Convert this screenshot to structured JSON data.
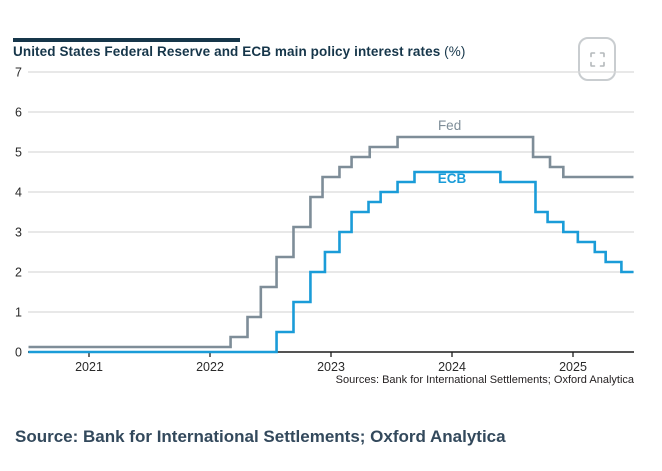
{
  "header": {
    "title_main": "United States Federal Reserve and ECB main policy interest rates",
    "title_unit": "(%)"
  },
  "controls": {
    "expand_button": "fullscreen"
  },
  "chart_data": {
    "type": "line",
    "subtype": "step",
    "title": "United States Federal Reserve and ECB main policy interest rates (%)",
    "xlabel": "",
    "ylabel": "",
    "x_range": [
      2020.5,
      2025.5
    ],
    "ylim": [
      0,
      7
    ],
    "y_ticks": [
      0,
      1,
      2,
      3,
      4,
      5,
      6,
      7
    ],
    "x_ticks": [
      2021,
      2022,
      2023,
      2024,
      2025
    ],
    "grid": true,
    "legend_position": "inline-labels",
    "colors": {
      "fed": "#7e8d98",
      "ecb": "#1a9cd8",
      "gridline": "#d9d9d9",
      "axis": "#1c1c1c",
      "tick_label": "#2a2a2a"
    },
    "series": [
      {
        "name": "Fed",
        "color": "#7e8d98",
        "label": {
          "year": 2023.98,
          "value": 5.55
        },
        "points": [
          [
            2020.5,
            0.125
          ],
          [
            2022.17,
            0.375
          ],
          [
            2022.31,
            0.875
          ],
          [
            2022.42,
            1.625
          ],
          [
            2022.55,
            2.375
          ],
          [
            2022.69,
            3.125
          ],
          [
            2022.83,
            3.875
          ],
          [
            2022.93,
            4.375
          ],
          [
            2023.07,
            4.625
          ],
          [
            2023.17,
            4.875
          ],
          [
            2023.32,
            5.125
          ],
          [
            2023.55,
            5.375
          ],
          [
            2024.67,
            4.875
          ],
          [
            2024.81,
            4.625
          ],
          [
            2024.92,
            4.375
          ]
        ],
        "end_year": 2025.5
      },
      {
        "name": "ECB",
        "color": "#1a9cd8",
        "label": {
          "year": 2024.0,
          "value": 4.22
        },
        "points": [
          [
            2020.5,
            0.0
          ],
          [
            2022.55,
            0.5
          ],
          [
            2022.69,
            1.25
          ],
          [
            2022.83,
            2.0
          ],
          [
            2022.95,
            2.5
          ],
          [
            2023.07,
            3.0
          ],
          [
            2023.17,
            3.5
          ],
          [
            2023.31,
            3.75
          ],
          [
            2023.41,
            4.0
          ],
          [
            2023.55,
            4.25
          ],
          [
            2023.69,
            4.5
          ],
          [
            2024.4,
            4.25
          ],
          [
            2024.69,
            3.5
          ],
          [
            2024.79,
            3.25
          ],
          [
            2024.92,
            3.0
          ],
          [
            2025.04,
            2.75
          ],
          [
            2025.18,
            2.5
          ],
          [
            2025.27,
            2.25
          ],
          [
            2025.4,
            2.0
          ]
        ],
        "end_year": 2025.5
      }
    ],
    "sources_note": "Sources: Bank for International Settlements; Oxford Analytica"
  },
  "footer": {
    "source": "Source: Bank for International Settlements; Oxford Analytica"
  }
}
